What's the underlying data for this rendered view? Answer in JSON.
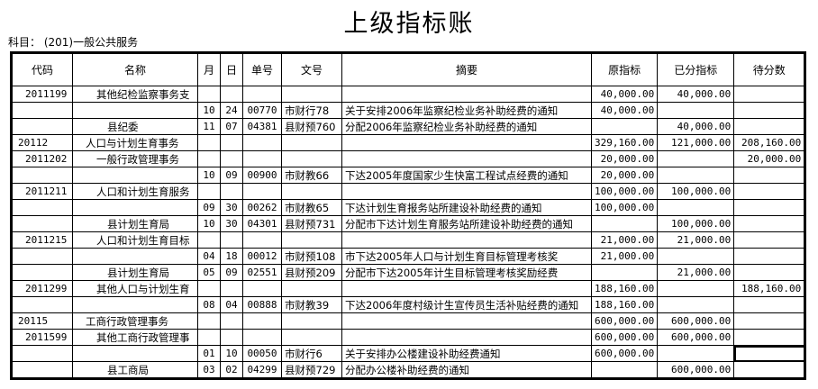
{
  "title": "上级指标账",
  "subject": "科目： (201)一般公共服务",
  "headers": [
    "代码",
    "名称",
    "月",
    "日",
    "单号",
    "文号",
    "摘要",
    "原指标",
    "已分指标",
    "待分数"
  ],
  "rows": [
    {
      "code": "2011199",
      "name": "其他纪检监察事务支",
      "lvl": 2,
      "m": "",
      "d": "",
      "no": "",
      "doc": "",
      "memo": "",
      "orig": "40,000.00",
      "alloc": "40,000.00",
      "pend": ""
    },
    {
      "code": "",
      "name": "",
      "lvl": 0,
      "m": "10",
      "d": "24",
      "no": "00770",
      "doc": "市财行78",
      "memo": "关于安排2006年监察纪检业务补助经费的通知",
      "orig": "40,000.00",
      "alloc": "",
      "pend": ""
    },
    {
      "code": "",
      "name": "县纪委",
      "lvl": 3,
      "m": "11",
      "d": "07",
      "no": "04381",
      "doc": "县财预760",
      "memo": "分配2006年监察纪检业务补助经费的通知",
      "orig": "",
      "alloc": "40,000.00",
      "pend": ""
    },
    {
      "code": "20112",
      "name": "人口与计划生育事务",
      "lvl": 1,
      "m": "",
      "d": "",
      "no": "",
      "doc": "",
      "memo": "",
      "orig": "329,160.00",
      "alloc": "121,000.00",
      "pend": "208,160.00"
    },
    {
      "code": "2011202",
      "name": "一般行政管理事务",
      "lvl": 2,
      "m": "",
      "d": "",
      "no": "",
      "doc": "",
      "memo": "",
      "orig": "20,000.00",
      "alloc": "",
      "pend": "20,000.00"
    },
    {
      "code": "",
      "name": "",
      "lvl": 0,
      "m": "10",
      "d": "09",
      "no": "00900",
      "doc": "市财教66",
      "memo": "下达2005年度国家少生快富工程试点经费的通知",
      "orig": "20,000.00",
      "alloc": "",
      "pend": ""
    },
    {
      "code": "2011211",
      "name": "人口和计划生育服务",
      "lvl": 2,
      "m": "",
      "d": "",
      "no": "",
      "doc": "",
      "memo": "",
      "orig": "100,000.00",
      "alloc": "100,000.00",
      "pend": ""
    },
    {
      "code": "",
      "name": "",
      "lvl": 0,
      "m": "09",
      "d": "30",
      "no": "00262",
      "doc": "市财教65",
      "memo": "下达计划生育报务站所建设补助经费的通知",
      "orig": "100,000.00",
      "alloc": "",
      "pend": ""
    },
    {
      "code": "",
      "name": "县计划生育局",
      "lvl": 3,
      "m": "10",
      "d": "30",
      "no": "04301",
      "doc": "县财预731",
      "memo": "分配市下达计划生育服务站所建设补助经费的通知",
      "orig": "",
      "alloc": "100,000.00",
      "pend": ""
    },
    {
      "code": "2011215",
      "name": "人口和计划生育目标",
      "lvl": 2,
      "m": "",
      "d": "",
      "no": "",
      "doc": "",
      "memo": "",
      "orig": "21,000.00",
      "alloc": "21,000.00",
      "pend": ""
    },
    {
      "code": "",
      "name": "",
      "lvl": 0,
      "m": "04",
      "d": "18",
      "no": "00012",
      "doc": "市财预108",
      "memo": "市下达2005年人口与计划生育目标管理考核奖",
      "orig": "21,000.00",
      "alloc": "",
      "pend": ""
    },
    {
      "code": "",
      "name": "县计划生育局",
      "lvl": 3,
      "m": "05",
      "d": "09",
      "no": "02551",
      "doc": "县财预209",
      "memo": "分配市下达2005年计生目标管理考核奖励经费",
      "orig": "",
      "alloc": "21,000.00",
      "pend": ""
    },
    {
      "code": "2011299",
      "name": "其他人口与计划生育",
      "lvl": 2,
      "m": "",
      "d": "",
      "no": "",
      "doc": "",
      "memo": "",
      "orig": "188,160.00",
      "alloc": "",
      "pend": "188,160.00"
    },
    {
      "code": "",
      "name": "",
      "lvl": 0,
      "m": "08",
      "d": "04",
      "no": "00888",
      "doc": "市财教39",
      "memo": "下达2006年度村级计生宣传员生活补贴经费的通知",
      "orig": "188,160.00",
      "alloc": "",
      "pend": ""
    },
    {
      "code": "20115",
      "name": "工商行政管理事务",
      "lvl": 1,
      "m": "",
      "d": "",
      "no": "",
      "doc": "",
      "memo": "",
      "orig": "600,000.00",
      "alloc": "600,000.00",
      "pend": ""
    },
    {
      "code": "2011599",
      "name": "其他工商行政管理事",
      "lvl": 2,
      "m": "",
      "d": "",
      "no": "",
      "doc": "",
      "memo": "",
      "orig": "600,000.00",
      "alloc": "600,000.00",
      "pend": ""
    },
    {
      "code": "",
      "name": "",
      "lvl": 0,
      "m": "01",
      "d": "10",
      "no": "00050",
      "doc": "市财行6",
      "memo": "关于安排办公楼建设补助经费通知",
      "orig": "600,000.00",
      "alloc": "",
      "pend": "",
      "selected": true
    },
    {
      "code": "",
      "name": "县工商局",
      "lvl": 3,
      "m": "03",
      "d": "02",
      "no": "04299",
      "doc": "县财预729",
      "memo": "分配办公楼补助经费的通知",
      "orig": "",
      "alloc": "600,000.00",
      "pend": ""
    }
  ]
}
